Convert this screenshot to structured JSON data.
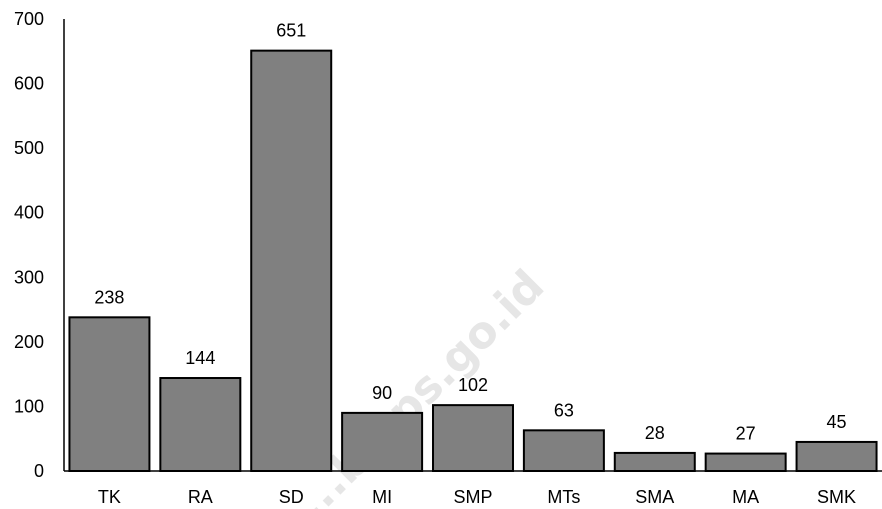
{
  "chart_data": {
    "type": "bar",
    "title": "",
    "xlabel": "",
    "ylabel": "",
    "categories": [
      "TK",
      "RA",
      "SD",
      "MI",
      "SMP",
      "MTs",
      "SMA",
      "MA",
      "SMK"
    ],
    "values": [
      238,
      144,
      651,
      90,
      102,
      63,
      28,
      27,
      45
    ],
    "ylim": [
      0,
      700
    ],
    "yticks": [
      "0",
      "100",
      "200",
      "300",
      "400",
      "500",
      "600",
      "700"
    ],
    "grid": false,
    "legend": "none",
    "bar_color": "#808080",
    "bar_border_color": "#000000"
  },
  "watermark": {
    "text": "...b.bps.go.id",
    "color": "#e6e6e6"
  }
}
